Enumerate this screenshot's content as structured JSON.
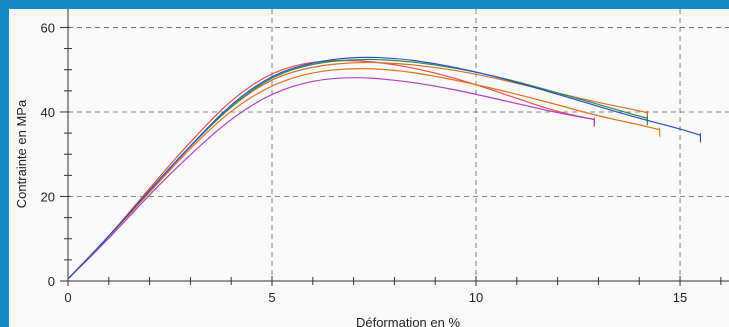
{
  "chart_data": {
    "type": "line",
    "title": "",
    "xlabel": "Déformation en %",
    "ylabel": "Contrainte en MPa",
    "xlim": [
      0,
      16.2
    ],
    "ylim": [
      0,
      62
    ],
    "x_ticks": [
      0,
      5,
      10,
      15
    ],
    "y_ticks": [
      0,
      20,
      40,
      60
    ],
    "x_tick_labels": [
      "0",
      "5",
      "10",
      "15"
    ],
    "y_tick_labels": [
      "0",
      "20",
      "40",
      "60"
    ],
    "grid": true,
    "grid_style": "dashed",
    "legend": "none",
    "series": [
      {
        "color": "#e05050",
        "x": [
          0,
          1,
          2,
          3,
          4,
          5,
          6,
          7,
          8,
          9,
          10,
          11,
          12,
          12.9
        ],
        "y": [
          0.5,
          10.5,
          22,
          33,
          43,
          49.5,
          52,
          52.3,
          51.3,
          49.3,
          46.5,
          43.2,
          40,
          38.2
        ]
      },
      {
        "color": "#b040c0",
        "x": [
          0,
          1,
          2,
          3,
          4,
          5,
          6,
          7,
          8,
          9,
          10,
          11,
          12,
          12.9
        ],
        "y": [
          0.5,
          10,
          20.5,
          30,
          38.5,
          44.5,
          47.5,
          48.3,
          47.6,
          46.2,
          44.2,
          42,
          39.8,
          38.2
        ]
      },
      {
        "color": "#e07020",
        "x": [
          0,
          1,
          2,
          3,
          4,
          5,
          6,
          7,
          8,
          9,
          10,
          11,
          12,
          13,
          14,
          14.5
        ],
        "y": [
          0.5,
          10.5,
          21,
          31.5,
          40.5,
          46.5,
          49.5,
          50.4,
          50,
          48.5,
          46.5,
          44.2,
          41.7,
          39,
          37,
          35.8
        ]
      },
      {
        "color": "#d07030",
        "x": [
          0,
          1,
          2,
          3,
          4,
          5,
          6,
          7,
          8,
          9,
          10,
          11,
          12,
          13,
          14,
          14.2
        ],
        "y": [
          0.5,
          10.5,
          21.5,
          32,
          41.5,
          48,
          50.8,
          51.8,
          51.6,
          50.6,
          49,
          46.8,
          44.5,
          42.2,
          40.3,
          39.8
        ]
      },
      {
        "color": "#2f8a4a",
        "x": [
          0,
          1,
          2,
          3,
          4,
          5,
          6,
          7,
          8,
          9,
          10,
          11,
          12,
          13,
          14,
          14.2
        ],
        "y": [
          0.5,
          10.5,
          21.5,
          32,
          41.5,
          48.5,
          51.5,
          52.5,
          52.3,
          51.2,
          49.5,
          47.2,
          44.5,
          41.8,
          39,
          38.5
        ]
      },
      {
        "color": "#2a50c0",
        "x": [
          0,
          1,
          2,
          3,
          4,
          5,
          6,
          7,
          8,
          9,
          10,
          11,
          12,
          13,
          14,
          15,
          15.5
        ],
        "y": [
          0.5,
          10.5,
          21.5,
          32,
          42,
          48.8,
          51.8,
          53,
          52.8,
          51.5,
          49.5,
          47,
          44.2,
          41.3,
          38.5,
          36,
          34.5
        ]
      }
    ]
  }
}
